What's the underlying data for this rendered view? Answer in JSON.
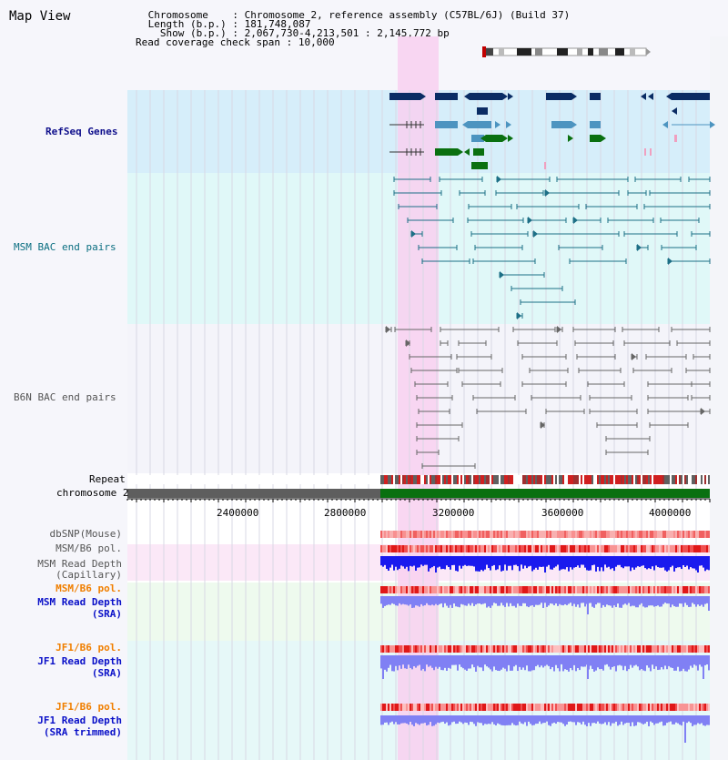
{
  "header": {
    "title": "Map View",
    "info_lines": [
      {
        "key": " Chromosome    ",
        "value": "Chromosome 2, reference assembly (C57BL/6J) (Build 37)"
      },
      {
        "key": " Length (b.p.) ",
        "value": "181,748,087"
      },
      {
        "key": "   Show (b.p.) ",
        "value": "2,067,730-4,213,501 : 2,145,772 bp"
      },
      {
        "key": "Read coverage check span ",
        "value": "10,000"
      }
    ]
  },
  "tracks": {
    "refseq": "RefSeq Genes",
    "msm_bac": "MSM BAC end pairs",
    "b6n_bac": "B6N BAC end pairs",
    "repeat": "Repeat",
    "chromosome": "chromosome 2",
    "dbsnp": "dbSNP(Mouse)",
    "msm_b6_pol_1": "MSM/B6 pol.",
    "msm_depth_cap_1": "MSM Read Depth",
    "msm_depth_cap_2": "(Capillary)",
    "msm_b6_pol_2": "MSM/B6 pol.",
    "msm_depth_sra_1": "MSM Read Depth",
    "msm_depth_sra_2": "(SRA)",
    "jf1_b6_pol_1": "JF1/B6 pol.",
    "jf1_depth_sra_1": "JF1 Read Depth",
    "jf1_depth_sra_2": "(SRA)",
    "jf1_b6_pol_2": "JF1/B6 pol.",
    "jf1_depth_trim_1": "JF1 Read Depth",
    "jf1_depth_trim_2": "(SRA trimmed)"
  },
  "axis": {
    "ticks": [
      "2400000",
      "2800000",
      "3200000",
      "3600000",
      "4000000"
    ]
  },
  "colors": {
    "refseq_bg": "#d6eefa",
    "msm_bg": "#e0f8f8",
    "b6n_bg": "#f4f4fa",
    "highlight": "#f8d0f0",
    "gene_dark": "#0a2c64",
    "gene_mid": "#4d94c0",
    "gene_green": "#0a7010",
    "msm_pair": "#1d6f86",
    "b6n_pair": "#666666",
    "chrom_grey": "#5e5e5e",
    "chrom_green": "#0a7010",
    "snp_red": "#e04040",
    "depth_blue": "#1a1aee",
    "depth_light": "#8080f4"
  }
}
